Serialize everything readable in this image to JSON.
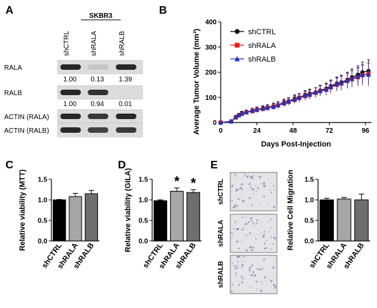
{
  "panels": {
    "a": {
      "label": "A",
      "cell_line": "SKBR3",
      "lanes": [
        "shCTRL",
        "shRALA",
        "shRALB"
      ],
      "blots": [
        {
          "name": "RALA",
          "values": [
            "1.00",
            "0.13",
            "1.39"
          ],
          "intensity": [
            1.0,
            0.2,
            1.0
          ]
        },
        {
          "name": "RALB",
          "values": [
            "1.00",
            "0.94",
            "0.01"
          ],
          "intensity": [
            1.0,
            0.95,
            0.0
          ]
        },
        {
          "name": "ACTIN (RALA)",
          "values": [],
          "intensity": [
            1.0,
            0.9,
            1.0
          ]
        },
        {
          "name": "ACTIN (RALB)",
          "values": [],
          "intensity": [
            1.0,
            0.85,
            0.9
          ]
        }
      ]
    },
    "b": {
      "label": "B"
    },
    "c": {
      "label": "C"
    },
    "d": {
      "label": "D",
      "annotation": "*"
    },
    "e": {
      "label": "E",
      "image_labels": [
        "shCTRL",
        "shRALA",
        "shRALB"
      ]
    }
  },
  "chart_data": [
    {
      "id": "tumor",
      "type": "line",
      "xlabel": "Days Post-Injection",
      "ylabel": "Average Tumor Volume (mm³)",
      "xlim": [
        0,
        100
      ],
      "ylim": [
        0,
        400
      ],
      "xticks": [
        0,
        24,
        48,
        72,
        96
      ],
      "yticks": [
        0,
        100,
        200,
        300,
        400
      ],
      "legend": "top-left",
      "x": [
        0,
        7,
        10,
        12,
        14,
        17,
        21,
        24,
        28,
        31,
        35,
        38,
        42,
        45,
        49,
        52,
        56,
        59,
        63,
        66,
        70,
        73,
        77,
        80,
        84,
        87,
        91,
        94,
        98
      ],
      "series": [
        {
          "name": "shCTRL",
          "color": "#000000",
          "marker": "circle",
          "values": [
            0,
            5,
            22,
            30,
            38,
            42,
            48,
            52,
            57,
            60,
            65,
            70,
            80,
            85,
            95,
            100,
            110,
            115,
            120,
            128,
            135,
            145,
            155,
            160,
            170,
            180,
            190,
            200,
            205
          ],
          "errors": [
            0,
            2,
            5,
            6,
            7,
            8,
            9,
            10,
            10,
            11,
            12,
            13,
            13,
            14,
            15,
            16,
            17,
            18,
            19,
            20,
            22,
            24,
            26,
            28,
            30,
            33,
            36,
            40,
            45
          ]
        },
        {
          "name": "shRALA",
          "color": "#e8191f",
          "marker": "square",
          "values": [
            0,
            4,
            20,
            28,
            34,
            40,
            45,
            50,
            54,
            58,
            62,
            68,
            76,
            82,
            90,
            97,
            105,
            110,
            118,
            125,
            130,
            140,
            150,
            155,
            165,
            172,
            180,
            188,
            195
          ],
          "errors": [
            0,
            2,
            5,
            6,
            7,
            8,
            9,
            10,
            10,
            11,
            12,
            13,
            13,
            14,
            15,
            16,
            17,
            18,
            19,
            20,
            22,
            24,
            26,
            28,
            30,
            33,
            36,
            40,
            45
          ]
        },
        {
          "name": "shRALB",
          "color": "#1f35b8",
          "marker": "triangle",
          "values": [
            0,
            4,
            21,
            29,
            36,
            41,
            47,
            51,
            56,
            59,
            63,
            69,
            78,
            84,
            92,
            99,
            108,
            112,
            120,
            126,
            132,
            142,
            152,
            158,
            166,
            175,
            183,
            190,
            190
          ],
          "errors": [
            0,
            2,
            5,
            6,
            7,
            8,
            9,
            10,
            10,
            11,
            12,
            13,
            13,
            14,
            15,
            16,
            17,
            18,
            19,
            20,
            22,
            24,
            26,
            28,
            30,
            33,
            36,
            40,
            45
          ]
        }
      ]
    },
    {
      "id": "mtt",
      "type": "bar",
      "ylabel": "Relative viability (MTT)",
      "ylim": [
        0,
        1.5
      ],
      "yticks": [
        "0.0",
        "0.5",
        "1.0",
        "1.5"
      ],
      "categories": [
        "shCTRL",
        "shRALA",
        "shRALB"
      ],
      "values": [
        1.0,
        1.08,
        1.15
      ],
      "errors": [
        0.01,
        0.08,
        0.08
      ],
      "colors": [
        "#000000",
        "#a6a6a6",
        "#6e6e6e"
      ],
      "significant": [
        false,
        false,
        false
      ]
    },
    {
      "id": "gila",
      "type": "bar",
      "ylabel": "Relative viability (GILA)",
      "ylim": [
        0,
        1.5
      ],
      "yticks": [
        "0.0",
        "0.5",
        "1.0",
        "1.5"
      ],
      "categories": [
        "shCTRL",
        "shRALA",
        "shRALB"
      ],
      "values": [
        0.98,
        1.21,
        1.18
      ],
      "errors": [
        0.02,
        0.08,
        0.07
      ],
      "colors": [
        "#000000",
        "#a6a6a6",
        "#6e6e6e"
      ],
      "significant": [
        false,
        true,
        true
      ]
    },
    {
      "id": "migration",
      "type": "bar",
      "ylabel": "Relative Cell Migration",
      "ylim": [
        0,
        1.5
      ],
      "yticks": [
        "0.0",
        "0.5",
        "1.0",
        "1.5"
      ],
      "categories": [
        "shCTRL",
        "shRALA",
        "shRALB"
      ],
      "values": [
        1.0,
        1.02,
        1.0
      ],
      "errors": [
        0.04,
        0.04,
        0.14
      ],
      "colors": [
        "#000000",
        "#a6a6a6",
        "#6e6e6e"
      ],
      "significant": [
        false,
        false,
        false
      ]
    }
  ]
}
